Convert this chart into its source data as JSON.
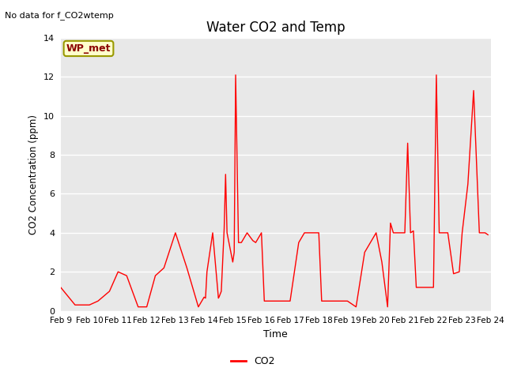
{
  "title": "Water CO2 and Temp",
  "xlabel": "Time",
  "ylabel": "CO2 Concentration (ppm)",
  "top_left_text": "No data for f_CO2wtemp",
  "legend_label": "CO2",
  "wp_met_label": "WP_met",
  "line_color": "#FF0000",
  "background_color": "#e8e8e8",
  "ylim": [
    0,
    14
  ],
  "x_tick_labels": [
    "Feb 9",
    "Feb 10",
    "Feb 11",
    "Feb 12",
    "Feb 13",
    "Feb 14",
    "Feb 15",
    "Feb 16",
    "Feb 17",
    "Feb 18",
    "Feb 19",
    "Feb 20",
    "Feb 21",
    "Feb 22",
    "Feb 23",
    "Feb 24"
  ],
  "x_values": [
    9,
    9.5,
    10,
    10.3,
    10.7,
    11,
    11.3,
    11.7,
    12,
    12.3,
    12.6,
    13,
    13.4,
    13.8,
    14.0,
    14.05,
    14.1,
    14.3,
    14.5,
    14.52,
    14.6,
    14.7,
    14.75,
    14.8,
    15.0,
    15.05,
    15.1,
    15.2,
    15.3,
    15.5,
    15.6,
    15.7,
    15.8,
    16.0,
    16.1,
    17.0,
    17.3,
    17.5,
    17.7,
    18.0,
    18.1,
    19.0,
    19.3,
    19.6,
    20.0,
    20.2,
    20.4,
    20.5,
    20.6,
    21.0,
    21.1,
    21.2,
    21.3,
    21.4,
    22.0,
    22.1,
    22.2,
    22.5,
    22.7,
    22.9,
    23.0,
    23.2,
    23.4,
    23.6,
    23.8,
    23.9
  ],
  "y_values": [
    1.2,
    0.3,
    0.3,
    0.5,
    1.0,
    2.0,
    1.8,
    0.2,
    0.2,
    1.8,
    2.2,
    4.0,
    2.2,
    0.2,
    0.7,
    0.65,
    2.0,
    4.0,
    0.65,
    0.7,
    1.0,
    4.2,
    7.0,
    4.0,
    2.5,
    3.0,
    12.1,
    3.5,
    3.5,
    4.0,
    3.8,
    3.6,
    3.5,
    4.0,
    0.5,
    0.5,
    3.5,
    4.0,
    4.0,
    4.0,
    0.5,
    0.5,
    0.2,
    3.0,
    4.0,
    2.5,
    0.2,
    4.5,
    4.0,
    4.0,
    8.6,
    4.0,
    4.1,
    1.2,
    1.2,
    12.1,
    4.0,
    4.0,
    1.9,
    2.0,
    4.0,
    6.5,
    11.3,
    4.0,
    4.0,
    3.9
  ]
}
